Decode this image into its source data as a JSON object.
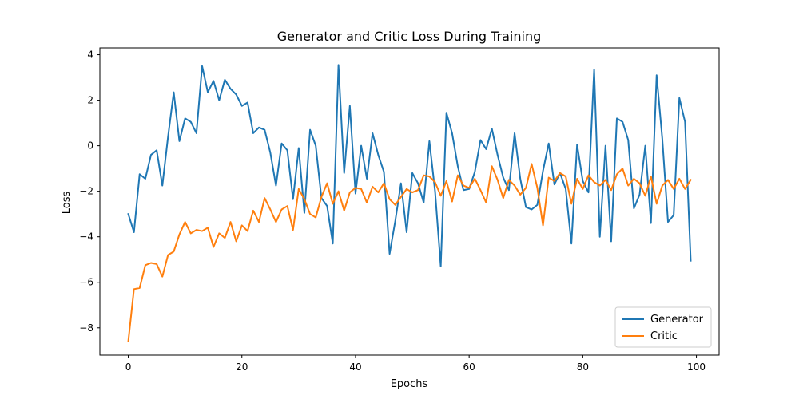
{
  "chart_data": {
    "type": "line",
    "title": "Generator and Critic Loss During Training",
    "xlabel": "Epochs",
    "ylabel": "Loss",
    "xlim": [
      -5,
      104
    ],
    "ylim": [
      -9.2,
      4.3
    ],
    "xticks": [
      0,
      20,
      40,
      60,
      80,
      100
    ],
    "yticks": [
      -8,
      -6,
      -4,
      -2,
      0,
      2,
      4
    ],
    "xtick_labels": [
      "0",
      "20",
      "40",
      "60",
      "80",
      "100"
    ],
    "ytick_labels": [
      "−8",
      "−6",
      "−4",
      "−2",
      "0",
      "2",
      "4"
    ],
    "grid": false,
    "legend_position": "bottom-right",
    "series": [
      {
        "name": "Generator",
        "color": "#1f77b4",
        "values": [
          -3.0,
          -3.8,
          -1.25,
          -1.45,
          -0.4,
          -0.2,
          -1.75,
          0.4,
          2.35,
          0.2,
          1.2,
          1.05,
          0.55,
          3.5,
          2.35,
          2.85,
          2.0,
          2.9,
          2.5,
          2.25,
          1.75,
          1.9,
          0.55,
          0.8,
          0.7,
          -0.3,
          -1.75,
          0.1,
          -0.2,
          -2.35,
          -0.1,
          -2.95,
          0.7,
          0.0,
          -2.3,
          -2.65,
          -4.3,
          3.55,
          -1.2,
          1.75,
          -2.1,
          0.0,
          -1.45,
          0.55,
          -0.4,
          -1.15,
          -4.75,
          -3.3,
          -1.65,
          -3.8,
          -1.2,
          -1.65,
          -2.5,
          0.2,
          -2.0,
          -5.3,
          1.45,
          0.55,
          -0.9,
          -1.95,
          -1.9,
          -1.15,
          0.25,
          -0.15,
          0.75,
          -0.4,
          -1.4,
          -1.95,
          0.55,
          -1.45,
          -2.7,
          -2.8,
          -2.6,
          -1.1,
          0.1,
          -1.7,
          -1.2,
          -1.9,
          -4.3,
          0.05,
          -1.55,
          -2.05,
          3.35,
          -4.0,
          0.0,
          -4.2,
          1.2,
          1.05,
          0.25,
          -2.75,
          -2.15,
          0.0,
          -3.4,
          3.1,
          0.3,
          -3.35,
          -3.05,
          2.1,
          1.05,
          -5.05
        ]
      },
      {
        "name": "Critic",
        "color": "#ff7f0e",
        "values": [
          -8.6,
          -6.3,
          -6.25,
          -5.25,
          -5.15,
          -5.2,
          -5.75,
          -4.8,
          -4.65,
          -3.9,
          -3.35,
          -3.85,
          -3.7,
          -3.75,
          -3.6,
          -4.45,
          -3.85,
          -4.05,
          -3.35,
          -4.2,
          -3.5,
          -3.75,
          -2.85,
          -3.35,
          -2.3,
          -2.8,
          -3.35,
          -2.8,
          -2.65,
          -3.7,
          -1.9,
          -2.35,
          -3.0,
          -3.15,
          -2.25,
          -1.65,
          -2.55,
          -2.0,
          -2.85,
          -2.05,
          -1.85,
          -1.9,
          -2.5,
          -1.8,
          -2.05,
          -1.65,
          -2.35,
          -2.6,
          -2.25,
          -1.9,
          -2.05,
          -1.95,
          -1.3,
          -1.35,
          -1.6,
          -2.2,
          -1.55,
          -2.45,
          -1.3,
          -1.75,
          -1.85,
          -1.45,
          -1.95,
          -2.5,
          -0.9,
          -1.5,
          -2.3,
          -1.5,
          -1.75,
          -2.15,
          -1.85,
          -0.8,
          -1.85,
          -3.5,
          -1.4,
          -1.55,
          -1.2,
          -1.35,
          -2.55,
          -1.45,
          -1.9,
          -1.3,
          -1.6,
          -1.75,
          -1.5,
          -1.95,
          -1.25,
          -1.0,
          -1.75,
          -1.45,
          -1.65,
          -2.2,
          -1.35,
          -2.55,
          -1.75,
          -1.5,
          -1.9,
          -1.45,
          -1.9,
          -1.5
        ]
      }
    ]
  }
}
